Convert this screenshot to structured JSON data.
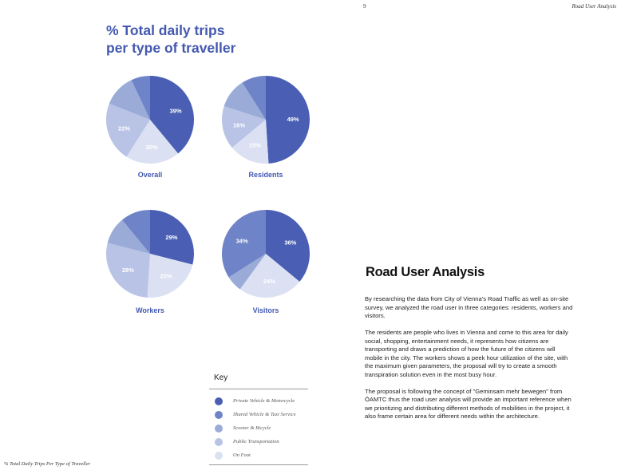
{
  "header": {
    "page_number": "9",
    "title": "Road User Analysis"
  },
  "main_title": {
    "line1": "% Total daily trips",
    "line2": "per type of traveller"
  },
  "colors": {
    "private_vehicle": "#4a5fb3",
    "shared_vehicle": "#6f84c8",
    "scooter_bicycle": "#9aabd8",
    "public_transport": "#b8c3e6",
    "on_foot": "#dbe1f3",
    "accent": "#4358b0"
  },
  "chart_data": [
    {
      "type": "pie",
      "title": "Overall",
      "labels": [
        "Private Vehicle & Motorcycle",
        "On Foot",
        "Public Transportation",
        "Scooter & Bicycle",
        "Shared Vehicle & Taxi Service"
      ],
      "values": [
        39,
        20,
        22,
        12,
        7
      ],
      "slice_labels": [
        "39%",
        "20%",
        "22%",
        "",
        ""
      ]
    },
    {
      "type": "pie",
      "title": "Residents",
      "labels": [
        "Private Vehicle & Motorcycle",
        "On Foot",
        "Public Transportation",
        "Scooter & Bicycle",
        "Shared Vehicle & Taxi Service"
      ],
      "values": [
        49,
        15,
        16,
        11,
        9
      ],
      "slice_labels": [
        "49%",
        "15%",
        "16%",
        "",
        ""
      ]
    },
    {
      "type": "pie",
      "title": "Workers",
      "labels": [
        "Private Vehicle & Motorcycle",
        "On Foot",
        "Public Transportation",
        "Scooter & Bicycle",
        "Shared Vehicle & Taxi Service"
      ],
      "values": [
        29,
        22,
        28,
        10,
        11
      ],
      "slice_labels": [
        "29%",
        "22%",
        "28%",
        "",
        ""
      ]
    },
    {
      "type": "pie",
      "title": "Visitors",
      "labels": [
        "Private Vehicle & Motorcycle",
        "On Foot",
        "Scooter & Bicycle",
        "Shared Vehicle & Taxi Service"
      ],
      "values": [
        36,
        24,
        6,
        34
      ],
      "slice_labels": [
        "36%",
        "24%",
        "",
        "34%"
      ]
    }
  ],
  "key": {
    "title": "Key",
    "items": [
      {
        "label": "Private Vehicle & Motorcycle",
        "color": "#4a5fb3"
      },
      {
        "label": "Shared Vehicle & Taxi Service",
        "color": "#6f84c8"
      },
      {
        "label": "Scooter & Bicycle",
        "color": "#9aabd8"
      },
      {
        "label": "Public Transportation",
        "color": "#b8c3e6"
      },
      {
        "label": "On Foot",
        "color": "#dbe1f3"
      }
    ]
  },
  "footer_caption": "% Total Daily Trips Per Type of Traveller",
  "section": {
    "title": "Road User Analysis",
    "paragraphs": [
      "By researching the data from City of Vienna's Road Traffic as well as on-site survey, we analyzed the road user in three categories: residents, workers and visitors.",
      "The residents are people who lives in Vienna and come to this area for daily social, shopping, entertainment needs, it represents how citizens are transporting and draws a prediction of how the future of the citizens will mobile in the city. The workers shows a peek hour utilization of the site, with the maximum given parameters, the proposal will try to create a smooth transpiration solution even in the most busy hour.",
      "The proposal is following the concept of \"Geminsam mehr bewegen\" from ÖAMTC thus the road user analysis will provide an important reference when we prioritizing and distributing different methods of mobilities in the project, it also frame certain area for different needs within the architecture."
    ]
  }
}
